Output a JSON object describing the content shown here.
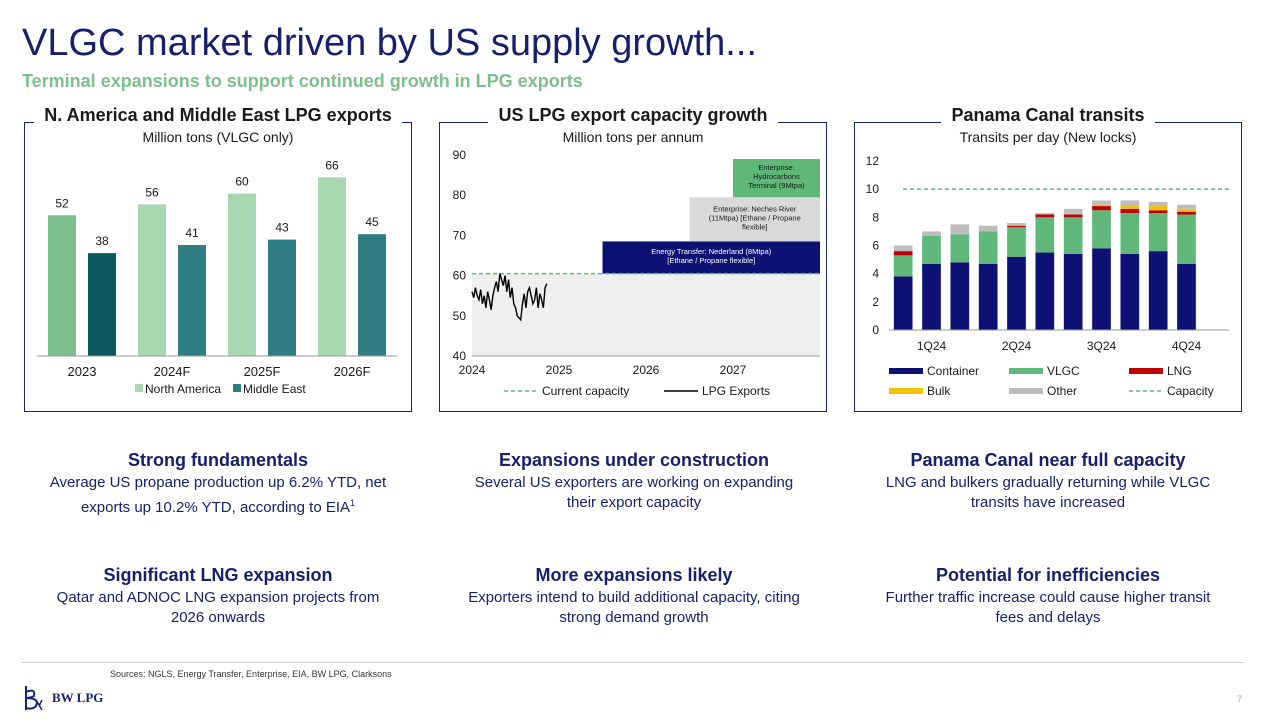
{
  "header": {
    "title": "VLGC market driven by US supply growth...",
    "subtitle": "Terminal expansions to support continued growth in LPG exports"
  },
  "colors": {
    "navy": "#18206b",
    "green_light": "#7dc08e",
    "teal_dark": "#0b5960",
    "teal": "#2e7d85",
    "container": "#0d1173",
    "vlgc": "#5fb879",
    "lng": "#c00000",
    "bulk": "#f5c200",
    "other": "#bdbdbd"
  },
  "panels": {
    "exports": {
      "title": "N. America and Middle East LPG exports",
      "subtitle": "Million tons (VLGC only)"
    },
    "capacity": {
      "title": "US LPG export capacity growth",
      "subtitle": "Million tons per annum"
    },
    "panama": {
      "title": "Panama Canal transits",
      "subtitle": "Transits per day (New locks)"
    }
  },
  "chart_data": [
    {
      "type": "bar",
      "title": "N. America and Middle East LPG exports",
      "subtitle": "Million tons (VLGC only)",
      "categories": [
        "2023",
        "2024F",
        "2025F",
        "2026F"
      ],
      "series": [
        {
          "name": "North America",
          "values": [
            52,
            56,
            60,
            66
          ]
        },
        {
          "name": "Middle East",
          "values": [
            38,
            41,
            43,
            45
          ]
        }
      ],
      "ylim": [
        0,
        75
      ],
      "grid": false,
      "legend": "bottom"
    },
    {
      "type": "line",
      "title": "US LPG export capacity growth",
      "subtitle": "Million tons per annum",
      "x_ticks": [
        "2024",
        "2025",
        "2026",
        "2027"
      ],
      "y_ticks": [
        40,
        50,
        60,
        70,
        80,
        90
      ],
      "ylim": [
        40,
        90
      ],
      "xlim": [
        2024.0,
        2028.0
      ],
      "series": [
        {
          "name": "Current capacity",
          "style": "dashed",
          "x": [
            2024.0,
            2028.0
          ],
          "y": [
            60.5,
            60.5
          ]
        },
        {
          "name": "LPG Exports",
          "style": "solid",
          "x": [
            2024.0,
            2024.02,
            2024.04,
            2024.06,
            2024.08,
            2024.1,
            2024.12,
            2024.14,
            2024.16,
            2024.18,
            2024.2,
            2024.22,
            2024.24,
            2024.26,
            2024.28,
            2024.3,
            2024.32,
            2024.34,
            2024.36,
            2024.38,
            2024.4,
            2024.42,
            2024.44,
            2024.46,
            2024.48,
            2024.5,
            2024.52,
            2024.54,
            2024.56,
            2024.58,
            2024.6,
            2024.62,
            2024.64,
            2024.66,
            2024.68,
            2024.7,
            2024.72,
            2024.74,
            2024.76,
            2024.78,
            2024.8,
            2024.82,
            2024.84,
            2024.86
          ],
          "y": [
            56,
            54.5,
            57,
            55,
            54,
            56.5,
            53,
            55,
            52,
            56,
            54,
            51.5,
            55,
            57,
            58.5,
            56,
            60.5,
            59,
            57.5,
            60,
            56,
            59,
            54.5,
            57,
            53,
            52,
            50,
            49.5,
            49,
            53,
            55.5,
            52,
            56,
            57,
            55,
            53,
            54,
            57,
            52,
            55.5,
            54,
            52,
            57,
            58
          ]
        }
      ],
      "annotations": [
        {
          "label": "Energy Transfer: Nederland (8Mtpa) [Ethane / Propane flexible]",
          "start": 2025.5,
          "end": 2028.0,
          "low": 60.5,
          "high": 68.5
        },
        {
          "label": "Enterprise: Neches River (11Mtpa) [Ethane / Propane flexible]",
          "start": 2026.5,
          "end": 2028.0,
          "low": 68.5,
          "high": 79.5
        },
        {
          "label": "Enterprise: Hydrocarbons Terminal (9Mtpa)",
          "start": 2027.0,
          "end": 2028.0,
          "low": 79.5,
          "high": 89
        }
      ],
      "grid": false,
      "legend": "bottom"
    },
    {
      "type": "bar",
      "stacked": true,
      "title": "Panama Canal transits",
      "subtitle": "Transits per day (New locks)",
      "quarter_labels": [
        "1Q24",
        "2Q24",
        "3Q24",
        "4Q24"
      ],
      "months": 12,
      "series": [
        {
          "name": "Container",
          "values": [
            3.8,
            4.7,
            4.8,
            4.7,
            5.2,
            5.5,
            5.4,
            5.8,
            5.4,
            5.6,
            4.7
          ]
        },
        {
          "name": "VLGC",
          "values": [
            1.5,
            2.0,
            2.0,
            2.3,
            2.1,
            2.5,
            2.6,
            2.7,
            2.9,
            2.7,
            3.5
          ]
        },
        {
          "name": "LNG",
          "values": [
            0.3,
            0.0,
            0.0,
            0.0,
            0.1,
            0.2,
            0.2,
            0.3,
            0.3,
            0.2,
            0.2
          ]
        },
        {
          "name": "Bulk",
          "values": [
            0.0,
            0.0,
            0.0,
            0.0,
            0.0,
            0.0,
            0.0,
            0.1,
            0.2,
            0.3,
            0.2
          ]
        },
        {
          "name": "Other",
          "values": [
            0.4,
            0.3,
            0.7,
            0.4,
            0.2,
            0.1,
            0.4,
            0.3,
            0.4,
            0.3,
            0.3
          ]
        }
      ],
      "capacity": 10,
      "capacity_label": "Capacity",
      "y_ticks": [
        0,
        2,
        4,
        6,
        8,
        10,
        12
      ],
      "ylim": [
        0,
        12
      ],
      "grid": false,
      "legend": "bottom"
    }
  ],
  "highlights": [
    {
      "title": "Strong fundamentals",
      "line1": "Average US propane production up 6.2% YTD, net",
      "line2": "exports up 10.2% YTD, according to EIA",
      "sup": "1"
    },
    {
      "title": "Expansions under construction",
      "line1": "Several US exporters are working on expanding",
      "line2": "their export capacity",
      "sup": ""
    },
    {
      "title": "Panama Canal near full capacity",
      "line1": "LNG and bulkers gradually returning while VLGC",
      "line2": "transits have increased",
      "sup": ""
    },
    {
      "title": "Significant LNG expansion",
      "line1": "Qatar and ADNOC LNG expansion projects from",
      "line2": "2026 onwards",
      "sup": ""
    },
    {
      "title": "More expansions likely",
      "line1": "Exporters intend to build additional capacity, citing",
      "line2": "strong demand growth",
      "sup": ""
    },
    {
      "title": "Potential for inefficiencies",
      "line1": "Further traffic increase could cause higher transit",
      "line2": "fees and delays",
      "sup": ""
    }
  ],
  "footer": {
    "sources": "Sources: NGLS, Energy Transfer, Enterprise, EIA, BW LPG, Clarksons",
    "logo_text": "BW LPG",
    "page_number": "7"
  }
}
